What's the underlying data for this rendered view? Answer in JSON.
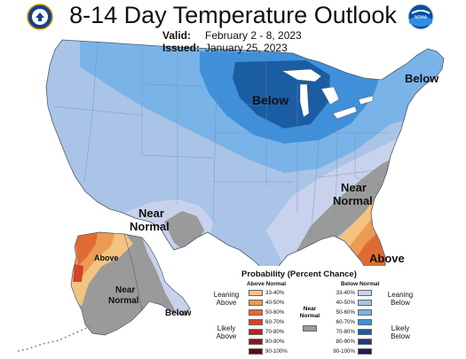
{
  "header": {
    "title": "8-14 Day Temperature Outlook",
    "valid_label": "Valid:",
    "valid_value": "February 2 - 8, 2023",
    "issued_label": "Issued:",
    "issued_value": "January 25, 2023"
  },
  "logos": {
    "left": "department-of-commerce-seal",
    "right": "noaa-logo",
    "right_text": "NOAA"
  },
  "map_labels": {
    "below_midwest": "Below",
    "below_northeast": "Below",
    "near_normal_southwest_1": "Near",
    "near_normal_southwest_2": "Normal",
    "near_normal_southeast_1": "Near",
    "near_normal_southeast_2": "Normal",
    "above_florida": "Above",
    "above_alaska": "Above",
    "near_normal_alaska_1": "Near",
    "near_normal_alaska_2": "Normal",
    "below_alaska": "Below"
  },
  "legend": {
    "title": "Probability (Percent Chance)",
    "above_header": "Above Normal",
    "below_header": "Below Normal",
    "near_header_1": "Near",
    "near_header_2": "Normal",
    "above_rows": [
      {
        "label": "33-40%",
        "color": "#f4c37f"
      },
      {
        "label": "40-50%",
        "color": "#eb9b55"
      },
      {
        "label": "50-60%",
        "color": "#e06b32"
      },
      {
        "label": "60-70%",
        "color": "#d3432a"
      },
      {
        "label": "70-80%",
        "color": "#b62424"
      },
      {
        "label": "80-90%",
        "color": "#8c1818"
      },
      {
        "label": "90-100%",
        "color": "#5a0e0e"
      }
    ],
    "below_rows": [
      {
        "label": "33-40%",
        "color": "#c9d2ec"
      },
      {
        "label": "40-50%",
        "color": "#a6c4e8"
      },
      {
        "label": "50-60%",
        "color": "#7ab3e8"
      },
      {
        "label": "60-70%",
        "color": "#3f90d8"
      },
      {
        "label": "70-80%",
        "color": "#1a5da3"
      },
      {
        "label": "80-90%",
        "color": "#1f3a7c"
      },
      {
        "label": "90-100%",
        "color": "#221a4e"
      }
    ],
    "near_color": "#9a9a9a",
    "leaning_above_1": "Leaning",
    "leaning_above_2": "Above",
    "likely_above_1": "Likely",
    "likely_above_2": "Above",
    "leaning_below_1": "Leaning",
    "leaning_below_2": "Below",
    "likely_below_1": "Likely",
    "likely_below_2": "Below"
  }
}
